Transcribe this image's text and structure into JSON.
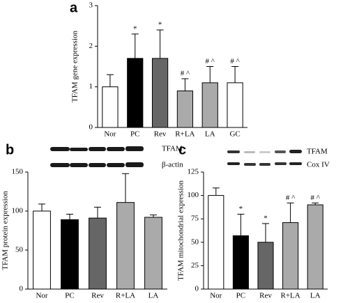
{
  "chart_data": [
    {
      "type": "bar",
      "panel_label": "a",
      "ylabel": "TFAM gene expression",
      "categories": [
        "Nor",
        "PC",
        "Rev",
        "R+LA",
        "LA",
        "GC"
      ],
      "values": [
        1.0,
        1.7,
        1.7,
        0.9,
        1.1,
        1.1
      ],
      "errors": [
        0.3,
        0.6,
        0.7,
        0.3,
        0.4,
        0.4
      ],
      "colors": [
        "#ffffff",
        "#000000",
        "#666666",
        "#aaaaaa",
        "#aaaaaa",
        "#ffffff"
      ],
      "annotations": [
        null,
        "*",
        "*",
        "# ^",
        "# ^",
        "# ^"
      ],
      "ylim": [
        0,
        3
      ],
      "yticks": [
        0,
        1,
        2,
        3
      ]
    },
    {
      "type": "bar",
      "panel_label": "b",
      "ylabel": "TFAM protein expression",
      "blot_labels": [
        "TFAM",
        "β-actin"
      ],
      "categories": [
        "Nor",
        "PC",
        "Rev",
        "R+LA",
        "LA"
      ],
      "values": [
        100,
        89,
        91,
        111,
        92
      ],
      "errors": [
        9,
        7,
        14,
        37,
        3
      ],
      "colors": [
        "#ffffff",
        "#000000",
        "#666666",
        "#aaaaaa",
        "#aaaaaa"
      ],
      "ylim": [
        0,
        150
      ],
      "yticks": [
        0,
        50,
        100,
        150
      ]
    },
    {
      "type": "bar",
      "panel_label": "c",
      "ylabel": "TFAM mitochondrial expression",
      "blot_labels": [
        "TFAM",
        "Cox IV"
      ],
      "categories": [
        "Nor",
        "PC",
        "Rev",
        "R+LA",
        "LA"
      ],
      "values": [
        100,
        57,
        50,
        71,
        90
      ],
      "errors": [
        8,
        23,
        20,
        21,
        2
      ],
      "colors": [
        "#ffffff",
        "#000000",
        "#666666",
        "#aaaaaa",
        "#aaaaaa"
      ],
      "annotations": [
        null,
        "*",
        "*",
        "# ^",
        "# ^"
      ],
      "ylim": [
        0,
        125
      ],
      "yticks": [
        0,
        25,
        50,
        75,
        100,
        125
      ]
    }
  ]
}
